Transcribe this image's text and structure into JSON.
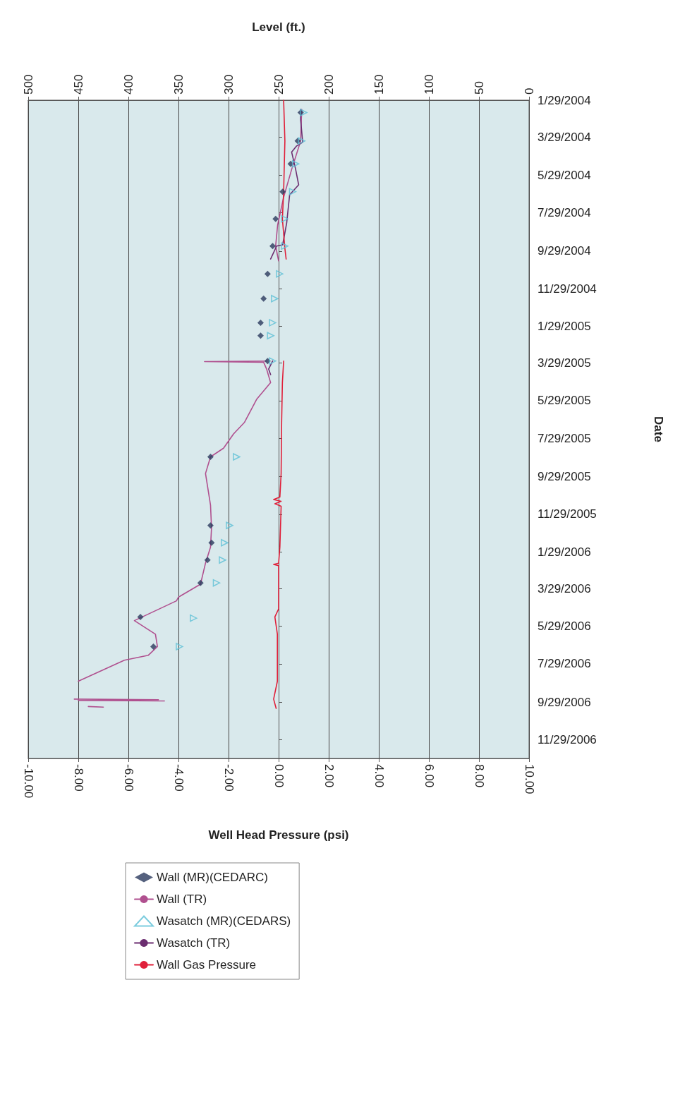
{
  "chart_data": {
    "type": "line",
    "orientation": "horizontal",
    "xlabel": "Well Head Pressure (psi)",
    "x2label": "Level (ft.)",
    "ylabel": "Date",
    "xlim": [
      -10,
      10
    ],
    "xticks": [
      {
        "value": -10,
        "label": "-10.00"
      },
      {
        "value": -8,
        "label": "-8.00"
      },
      {
        "value": -6,
        "label": "-6.00"
      },
      {
        "value": -4,
        "label": "-4.00"
      },
      {
        "value": -2,
        "label": "-2.00"
      },
      {
        "value": 0,
        "label": "0.00"
      },
      {
        "value": 2,
        "label": "2.00"
      },
      {
        "value": 4,
        "label": "4.00"
      },
      {
        "value": 6,
        "label": "6.00"
      },
      {
        "value": 8,
        "label": "8.00"
      },
      {
        "value": 10,
        "label": "10.00"
      }
    ],
    "x2lim": [
      500,
      0
    ],
    "x2ticks": [
      500,
      450,
      400,
      350,
      300,
      250,
      200,
      150,
      100,
      50,
      0
    ],
    "ylim": [
      "2006-12-29",
      "2004-01-29"
    ],
    "yticks": [
      {
        "value": "2004-01-29",
        "label": "1/29/2004"
      },
      {
        "value": "2004-03-29",
        "label": "3/29/2004"
      },
      {
        "value": "2004-05-29",
        "label": "5/29/2004"
      },
      {
        "value": "2004-07-29",
        "label": "7/29/2004"
      },
      {
        "value": "2004-09-29",
        "label": "9/29/2004"
      },
      {
        "value": "2004-11-29",
        "label": "11/29/2004"
      },
      {
        "value": "2005-01-29",
        "label": "1/29/2005"
      },
      {
        "value": "2005-03-29",
        "label": "3/29/2005"
      },
      {
        "value": "2005-05-29",
        "label": "5/29/2005"
      },
      {
        "value": "2005-07-29",
        "label": "7/29/2005"
      },
      {
        "value": "2005-09-29",
        "label": "9/29/2005"
      },
      {
        "value": "2005-11-29",
        "label": "11/29/2005"
      },
      {
        "value": "2006-01-29",
        "label": "1/29/2006"
      },
      {
        "value": "2006-03-29",
        "label": "3/29/2006"
      },
      {
        "value": "2006-05-29",
        "label": "5/29/2006"
      },
      {
        "value": "2006-07-29",
        "label": "7/29/2006"
      },
      {
        "value": "2006-09-29",
        "label": "9/29/2006"
      },
      {
        "value": "2006-11-29",
        "label": "11/29/2006"
      }
    ],
    "grid": "x",
    "legend": "bottom left",
    "series": [
      {
        "name": "Wall (MR)(CEDARC)",
        "type": "scatter",
        "marker": "diamond",
        "axis": "x2",
        "color": "#2b3a5e",
        "x": [
          "2004-02-18",
          "2004-04-04",
          "2004-05-11",
          "2004-06-25",
          "2004-08-08",
          "2004-09-21",
          "2004-11-05",
          "2004-12-15",
          "2005-01-23",
          "2005-02-13",
          "2005-03-26",
          "2005-08-28",
          "2005-12-17",
          "2006-01-14",
          "2006-02-11",
          "2006-03-20",
          "2006-05-14",
          "2006-07-01"
        ],
        "values": [
          228,
          231,
          238,
          246,
          253,
          256,
          261,
          265,
          268,
          268,
          261,
          318,
          318,
          317,
          321,
          328,
          388,
          375
        ]
      },
      {
        "name": "Wall (TR)",
        "type": "line",
        "marker": "none",
        "axis": "x2",
        "color": "#b0508f",
        "x": [
          "2004-02-13",
          "2004-04-04",
          "2004-05-20",
          "2004-07-04",
          "2004-08-18",
          "2004-09-21",
          "2004-10-15",
          "2005-01-01",
          "2005-03-26",
          "2005-03-27",
          "2005-03-28",
          "2005-04-08",
          "2005-04-30",
          "2005-05-27",
          "2005-07-03",
          "2005-07-22",
          "2005-08-14",
          "2005-08-28",
          "2005-09-24",
          "2005-11-14",
          "2005-12-21",
          "2006-01-21",
          "2006-02-16",
          "2006-03-22",
          "2006-04-12",
          "2006-04-18",
          "2006-05-20",
          "2006-06-11",
          "2006-07-01",
          "2006-07-15",
          "2006-07-23",
          "2006-08-26",
          "2006-09-10",
          "2006-09-24",
          "2006-09-25",
          "2006-09-26",
          "2006-09-27",
          "2006-10-01",
          "2006-10-06",
          "2006-10-07"
        ],
        "values": [
          227,
          228,
          237,
          245,
          251,
          253,
          250,
          null,
          262,
          324,
          265,
          262,
          258,
          272,
          284,
          295,
          305,
          318,
          323,
          318,
          317,
          318,
          323,
          328,
          350,
          352,
          394,
          373,
          371,
          380,
          404,
          450,
          null,
          454,
          370,
          450,
          364,
          null,
          440,
          425
        ]
      },
      {
        "name": "Wasatch (MR)(CEDARS)",
        "type": "scatter",
        "marker": "triangle",
        "axis": "x2",
        "color": "#5bbfd6",
        "x": [
          "2004-02-18",
          "2004-04-04",
          "2004-05-11",
          "2004-06-25",
          "2004-08-08",
          "2004-09-21",
          "2004-11-05",
          "2004-12-15",
          "2005-01-23",
          "2005-02-13",
          "2005-03-26",
          "2005-08-28",
          "2005-12-17",
          "2006-01-14",
          "2006-02-11",
          "2006-03-20",
          "2006-05-16",
          "2006-07-01"
        ],
        "values": [
          225,
          227,
          233,
          236,
          244,
          244,
          249,
          254,
          256,
          258,
          256,
          292,
          299,
          304,
          306,
          312,
          335,
          349
        ]
      },
      {
        "name": "Wasatch (TR)",
        "type": "line",
        "marker": "none",
        "axis": "x2",
        "color": "#6b2d70",
        "x": [
          "2004-02-13",
          "2004-03-01",
          "2004-04-06",
          "2004-04-12",
          "2004-04-22",
          "2004-05-20",
          "2004-06-14",
          "2004-06-30",
          "2004-08-15",
          "2004-09-19",
          "2004-09-21",
          "2004-10-12",
          "2005-01-01",
          "2005-03-26",
          "2005-04-08",
          "2005-04-17"
        ],
        "values": [
          228,
          228,
          226,
          232,
          237,
          233,
          230,
          239,
          242,
          246,
          252,
          258,
          null,
          256,
          260,
          258
        ]
      },
      {
        "name": "Wall Gas Pressure",
        "type": "line",
        "marker": "none",
        "color": "#e0203a",
        "x": [
          "2004-01-29",
          "2004-04-04",
          "2004-06-25",
          "2004-08-08",
          "2004-09-25",
          "2004-10-12",
          "2005-01-01",
          "2005-03-26",
          "2005-04-30",
          "2005-07-03",
          "2005-09-24",
          "2005-11-01",
          "2005-11-05",
          "2005-11-08",
          "2005-11-12",
          "2005-11-16",
          "2006-01-21",
          "2006-02-16",
          "2006-02-18",
          "2006-02-20",
          "2006-05-01",
          "2006-05-14",
          "2006-06-11",
          "2006-08-26",
          "2006-09-24",
          "2006-10-09"
        ],
        "values": [
          0.2,
          0.25,
          0.2,
          0.15,
          0.25,
          0.3,
          null,
          0.2,
          0.15,
          0.12,
          0.1,
          0.05,
          -0.2,
          0.1,
          -0.15,
          0.1,
          0.05,
          0.0,
          -0.2,
          0.0,
          0.0,
          -0.15,
          -0.05,
          -0.05,
          -0.2,
          -0.1
        ]
      }
    ]
  }
}
